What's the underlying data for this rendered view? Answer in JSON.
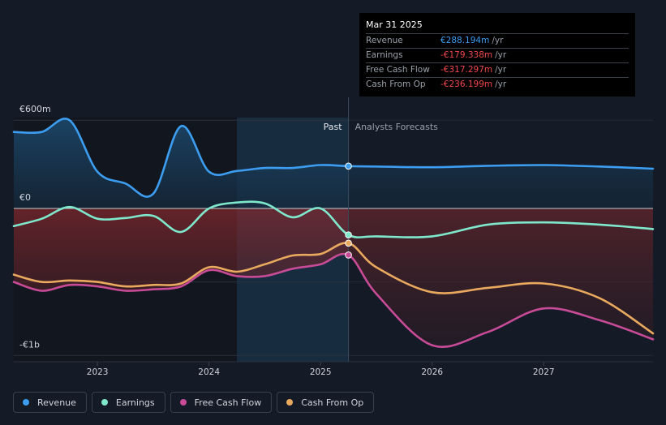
{
  "tooltip": {
    "date": "Mar 31 2025",
    "rows": [
      {
        "label": "Revenue",
        "value": "€288.194m",
        "unit": "/yr",
        "color": "#3d9df0"
      },
      {
        "label": "Earnings",
        "value": "-€179.338m",
        "unit": "/yr",
        "color": "#f2474c"
      },
      {
        "label": "Free Cash Flow",
        "value": "-€317.297m",
        "unit": "/yr",
        "color": "#f2474c"
      },
      {
        "label": "Cash From Op",
        "value": "-€236.199m",
        "unit": "/yr",
        "color": "#f2474c"
      }
    ]
  },
  "chart_data": {
    "type": "line",
    "title": "",
    "y_tick_labels": [
      "€600m",
      "€0",
      "-€1b"
    ],
    "ylim": [
      -1000,
      600
    ],
    "x_ticks": [
      2023,
      2024,
      2025,
      2026,
      2027
    ],
    "xlim": [
      2022.25,
      2027.98
    ],
    "past_label": "Past",
    "forecast_label": "Analysts Forecasts",
    "past_end": 2025.25,
    "highlight_start": 2024.25,
    "series": [
      {
        "name": "Revenue",
        "color": "#3d9df0",
        "points": [
          [
            2022.25,
            520
          ],
          [
            2022.5,
            520
          ],
          [
            2022.75,
            600
          ],
          [
            2023.0,
            250
          ],
          [
            2023.25,
            170
          ],
          [
            2023.5,
            100
          ],
          [
            2023.75,
            560
          ],
          [
            2024.0,
            250
          ],
          [
            2024.25,
            255
          ],
          [
            2024.5,
            275
          ],
          [
            2024.75,
            275
          ],
          [
            2025.0,
            295
          ],
          [
            2025.25,
            288
          ],
          [
            2025.5,
            285
          ],
          [
            2026.0,
            280
          ],
          [
            2026.5,
            290
          ],
          [
            2027.0,
            295
          ],
          [
            2027.5,
            285
          ],
          [
            2027.98,
            270
          ]
        ]
      },
      {
        "name": "Earnings",
        "color": "#7fe8cc",
        "points": [
          [
            2022.25,
            -120
          ],
          [
            2022.5,
            -70
          ],
          [
            2022.75,
            10
          ],
          [
            2023.0,
            -70
          ],
          [
            2023.25,
            -65
          ],
          [
            2023.5,
            -50
          ],
          [
            2023.75,
            -160
          ],
          [
            2024.0,
            0
          ],
          [
            2024.25,
            40
          ],
          [
            2024.5,
            35
          ],
          [
            2024.75,
            -60
          ],
          [
            2025.0,
            0
          ],
          [
            2025.25,
            -180
          ],
          [
            2025.5,
            -190
          ],
          [
            2026.0,
            -190
          ],
          [
            2026.5,
            -110
          ],
          [
            2027.0,
            -95
          ],
          [
            2027.5,
            -110
          ],
          [
            2027.98,
            -140
          ]
        ]
      },
      {
        "name": "Free Cash Flow",
        "color": "#c74b96",
        "points": [
          [
            2022.25,
            -500
          ],
          [
            2022.5,
            -560
          ],
          [
            2022.75,
            -520
          ],
          [
            2023.0,
            -530
          ],
          [
            2023.25,
            -560
          ],
          [
            2023.5,
            -550
          ],
          [
            2023.75,
            -530
          ],
          [
            2024.0,
            -420
          ],
          [
            2024.25,
            -460
          ],
          [
            2024.5,
            -460
          ],
          [
            2024.75,
            -410
          ],
          [
            2025.0,
            -380
          ],
          [
            2025.25,
            -317
          ],
          [
            2025.5,
            -580
          ],
          [
            2026.0,
            -930
          ],
          [
            2026.5,
            -840
          ],
          [
            2027.0,
            -680
          ],
          [
            2027.5,
            -760
          ],
          [
            2027.98,
            -890
          ]
        ]
      },
      {
        "name": "Cash From Op",
        "color": "#e9a95e",
        "points": [
          [
            2022.25,
            -450
          ],
          [
            2022.5,
            -500
          ],
          [
            2022.75,
            -490
          ],
          [
            2023.0,
            -500
          ],
          [
            2023.25,
            -530
          ],
          [
            2023.5,
            -520
          ],
          [
            2023.75,
            -510
          ],
          [
            2024.0,
            -400
          ],
          [
            2024.25,
            -430
          ],
          [
            2024.5,
            -380
          ],
          [
            2024.75,
            -320
          ],
          [
            2025.0,
            -310
          ],
          [
            2025.25,
            -236
          ],
          [
            2025.5,
            -400
          ],
          [
            2026.0,
            -570
          ],
          [
            2026.5,
            -540
          ],
          [
            2027.0,
            -510
          ],
          [
            2027.5,
            -610
          ],
          [
            2027.98,
            -850
          ]
        ]
      }
    ]
  },
  "legend": [
    {
      "label": "Revenue",
      "color": "#3d9df0"
    },
    {
      "label": "Earnings",
      "color": "#7fe8cc"
    },
    {
      "label": "Free Cash Flow",
      "color": "#c74b96"
    },
    {
      "label": "Cash From Op",
      "color": "#e9a95e"
    }
  ]
}
